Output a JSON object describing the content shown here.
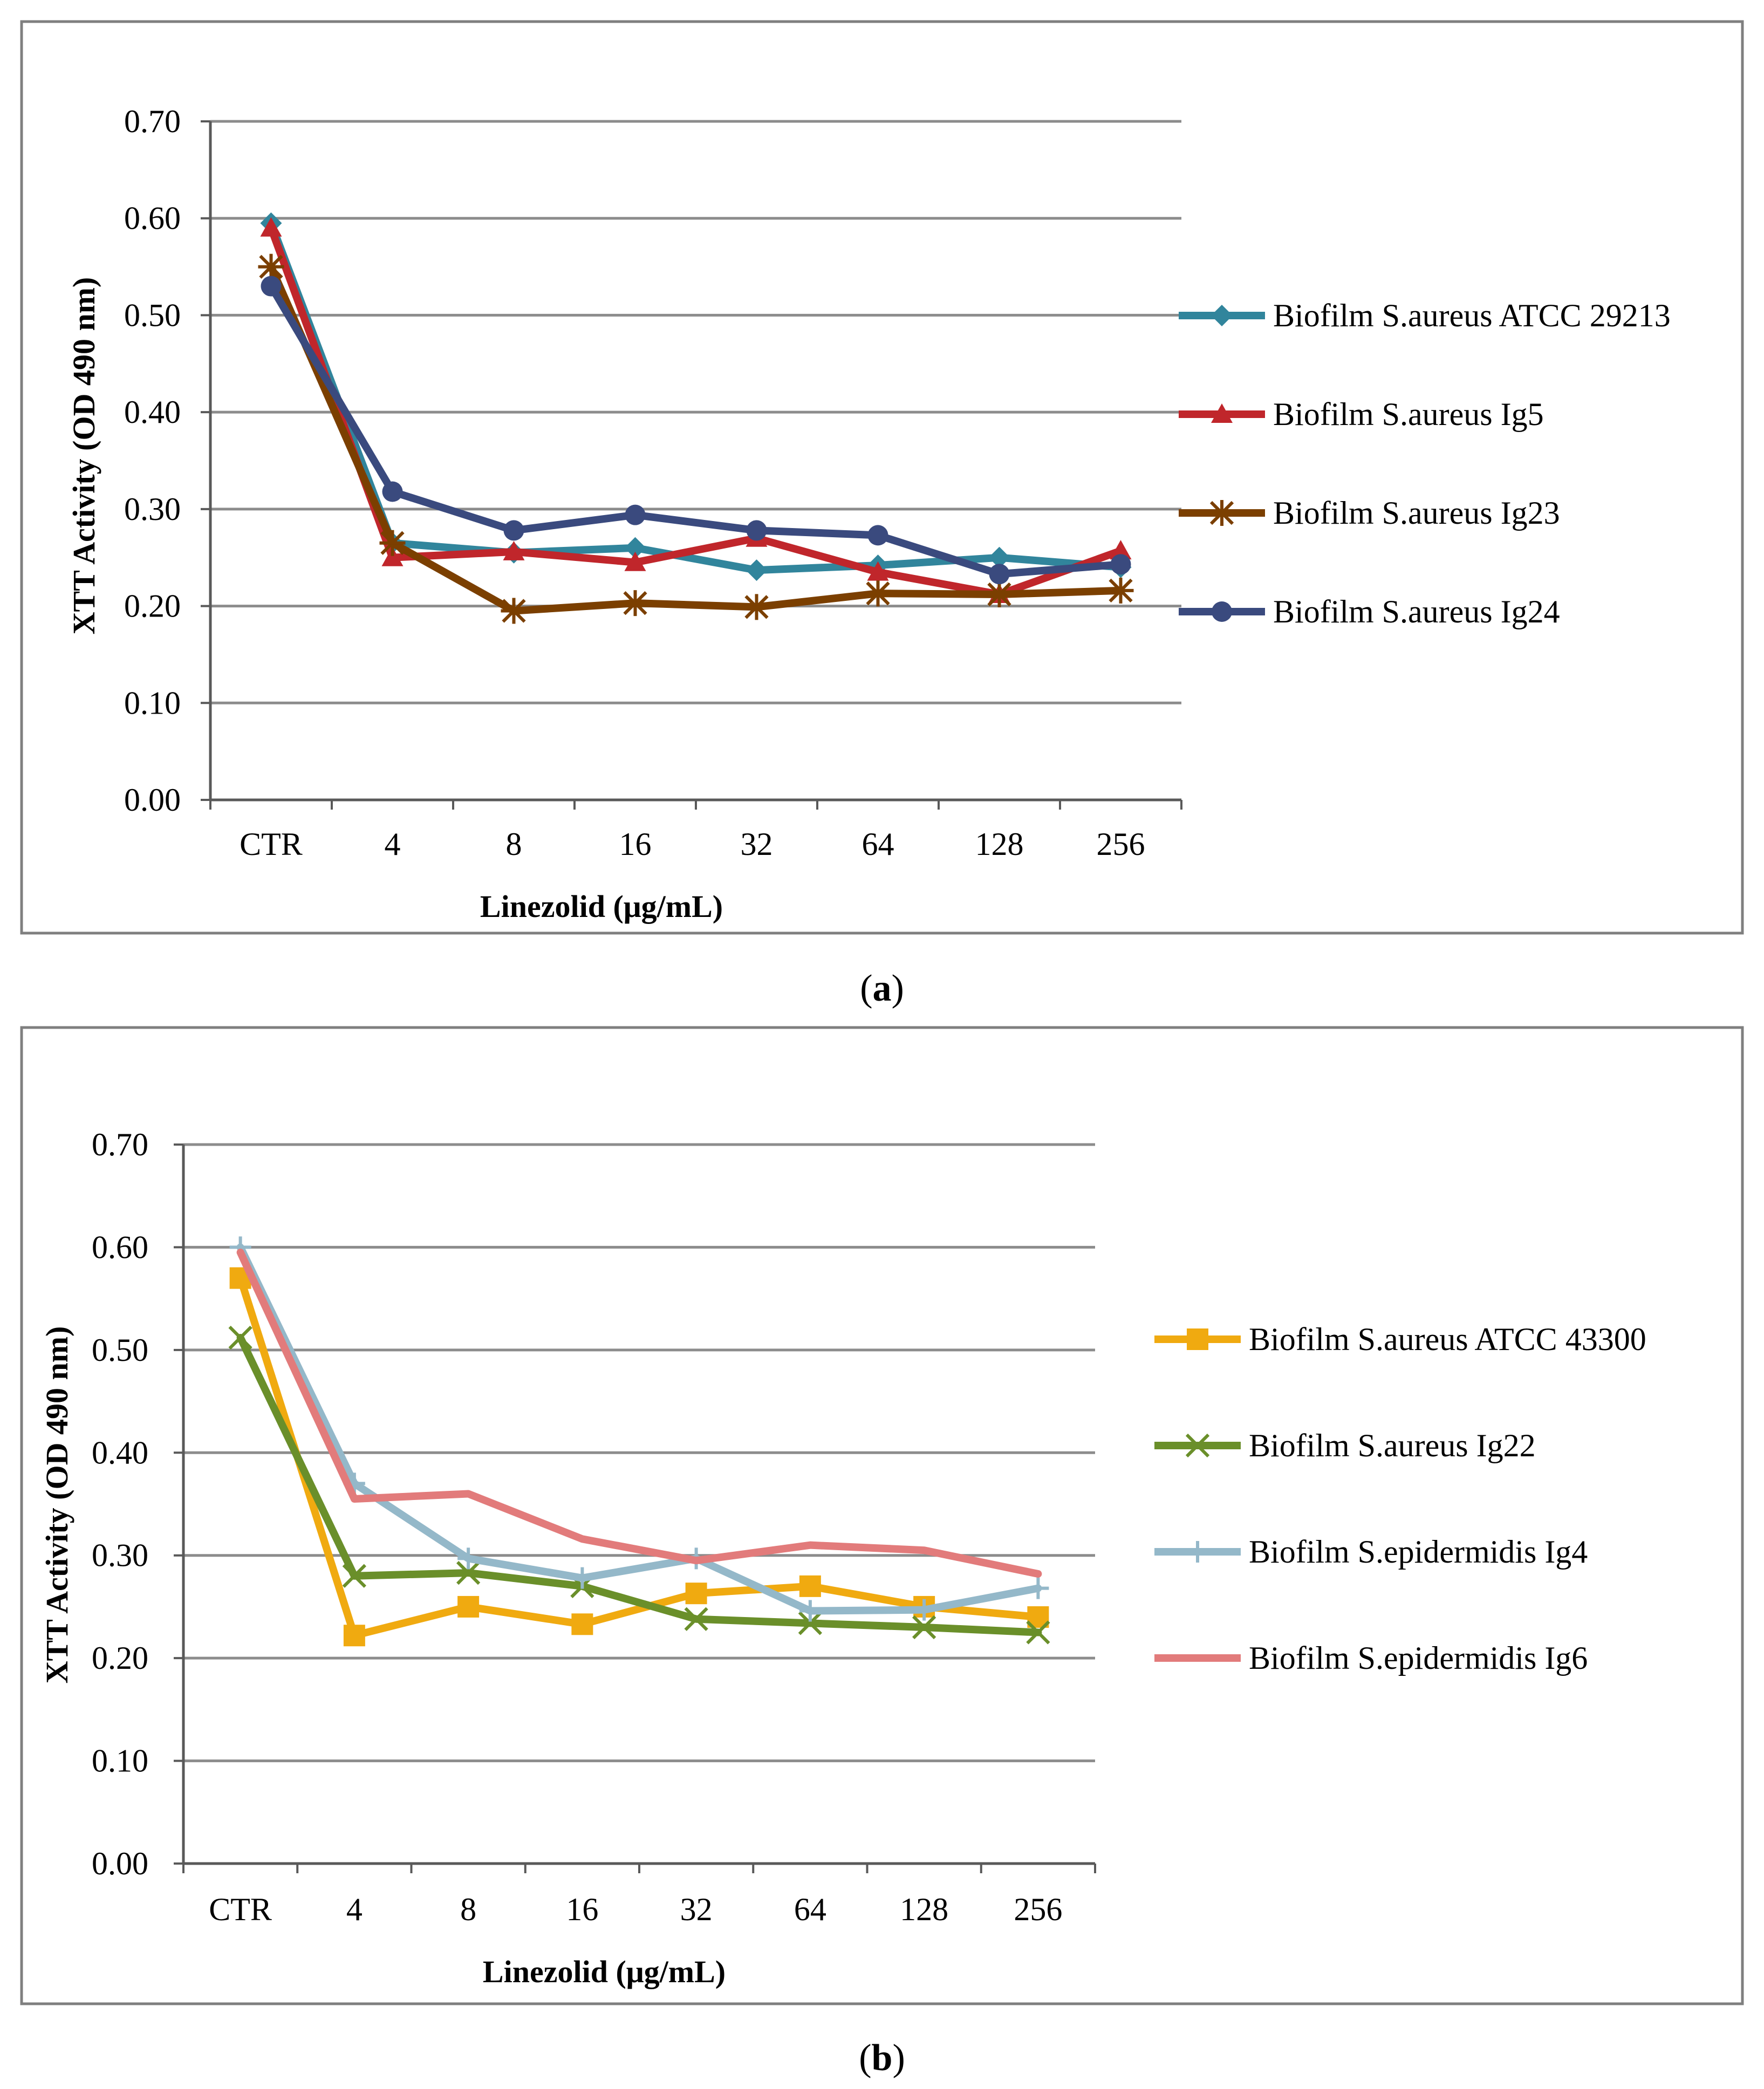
{
  "chart_data": [
    {
      "id": "a",
      "type": "line",
      "caption_letter": "a",
      "categories": [
        "CTR",
        "4",
        "8",
        "16",
        "32",
        "64",
        "128",
        "256"
      ],
      "xlabel": "Linezolid (μg/mL)",
      "ylabel": "XTT Activity  (OD 490 nm)",
      "ylim": [
        0,
        0.7
      ],
      "yticks": [
        "0.00",
        "0.10",
        "0.20",
        "0.30",
        "0.40",
        "0.50",
        "0.60",
        "0.70"
      ],
      "grid": true,
      "legend_position": "right",
      "series": [
        {
          "name": "Biofilm S.aureus ATCC 29213",
          "color": "#31859c",
          "marker": "diamond",
          "values": [
            0.595,
            0.265,
            0.255,
            0.26,
            0.237,
            0.242,
            0.25,
            0.24
          ]
        },
        {
          "name": "Biofilm S.aureus Ig5",
          "color": "#c0262b",
          "marker": "triangle",
          "values": [
            0.59,
            0.25,
            0.256,
            0.245,
            0.27,
            0.235,
            0.212,
            0.257
          ]
        },
        {
          "name": "Biofilm S.aureus Ig23",
          "color": "#7b3f00",
          "marker": "star",
          "values": [
            0.55,
            0.265,
            0.195,
            0.203,
            0.199,
            0.213,
            0.212,
            0.216
          ]
        },
        {
          "name": "Biofilm S.aureus Ig24",
          "color": "#3a4a7e",
          "marker": "circle",
          "values": [
            0.53,
            0.318,
            0.278,
            0.294,
            0.278,
            0.273,
            0.233,
            0.243
          ]
        }
      ]
    },
    {
      "id": "b",
      "type": "line",
      "caption_letter": "b",
      "categories": [
        "CTR",
        "4",
        "8",
        "16",
        "32",
        "64",
        "128",
        "256"
      ],
      "xlabel": "Linezolid (μg/mL)",
      "ylabel": "XTT Activity  (OD 490 nm)",
      "ylim": [
        0,
        0.7
      ],
      "yticks": [
        "0.00",
        "0.10",
        "0.20",
        "0.30",
        "0.40",
        "0.50",
        "0.60",
        "0.70"
      ],
      "grid": true,
      "legend_position": "right",
      "series": [
        {
          "name": "Biofilm S.aureus ATCC 43300",
          "color": "#f0aa10",
          "marker": "square",
          "values": [
            0.57,
            0.222,
            0.25,
            0.233,
            0.263,
            0.27,
            0.25,
            0.24
          ]
        },
        {
          "name": "Biofilm S.aureus Ig22",
          "color": "#6a8f2a",
          "marker": "x",
          "values": [
            0.512,
            0.28,
            0.283,
            0.27,
            0.238,
            0.234,
            0.23,
            0.225
          ]
        },
        {
          "name": "Biofilm S.epidermidis Ig4",
          "color": "#94b8c9",
          "marker": "plus",
          "values": [
            0.6,
            0.37,
            0.297,
            0.278,
            0.297,
            0.246,
            0.247,
            0.268
          ]
        },
        {
          "name": "Biofilm S.epidermidis Ig6",
          "color": "#e27b7b",
          "marker": "none",
          "values": [
            0.595,
            0.355,
            0.36,
            0.316,
            0.295,
            0.31,
            0.305,
            0.282
          ]
        }
      ]
    }
  ]
}
